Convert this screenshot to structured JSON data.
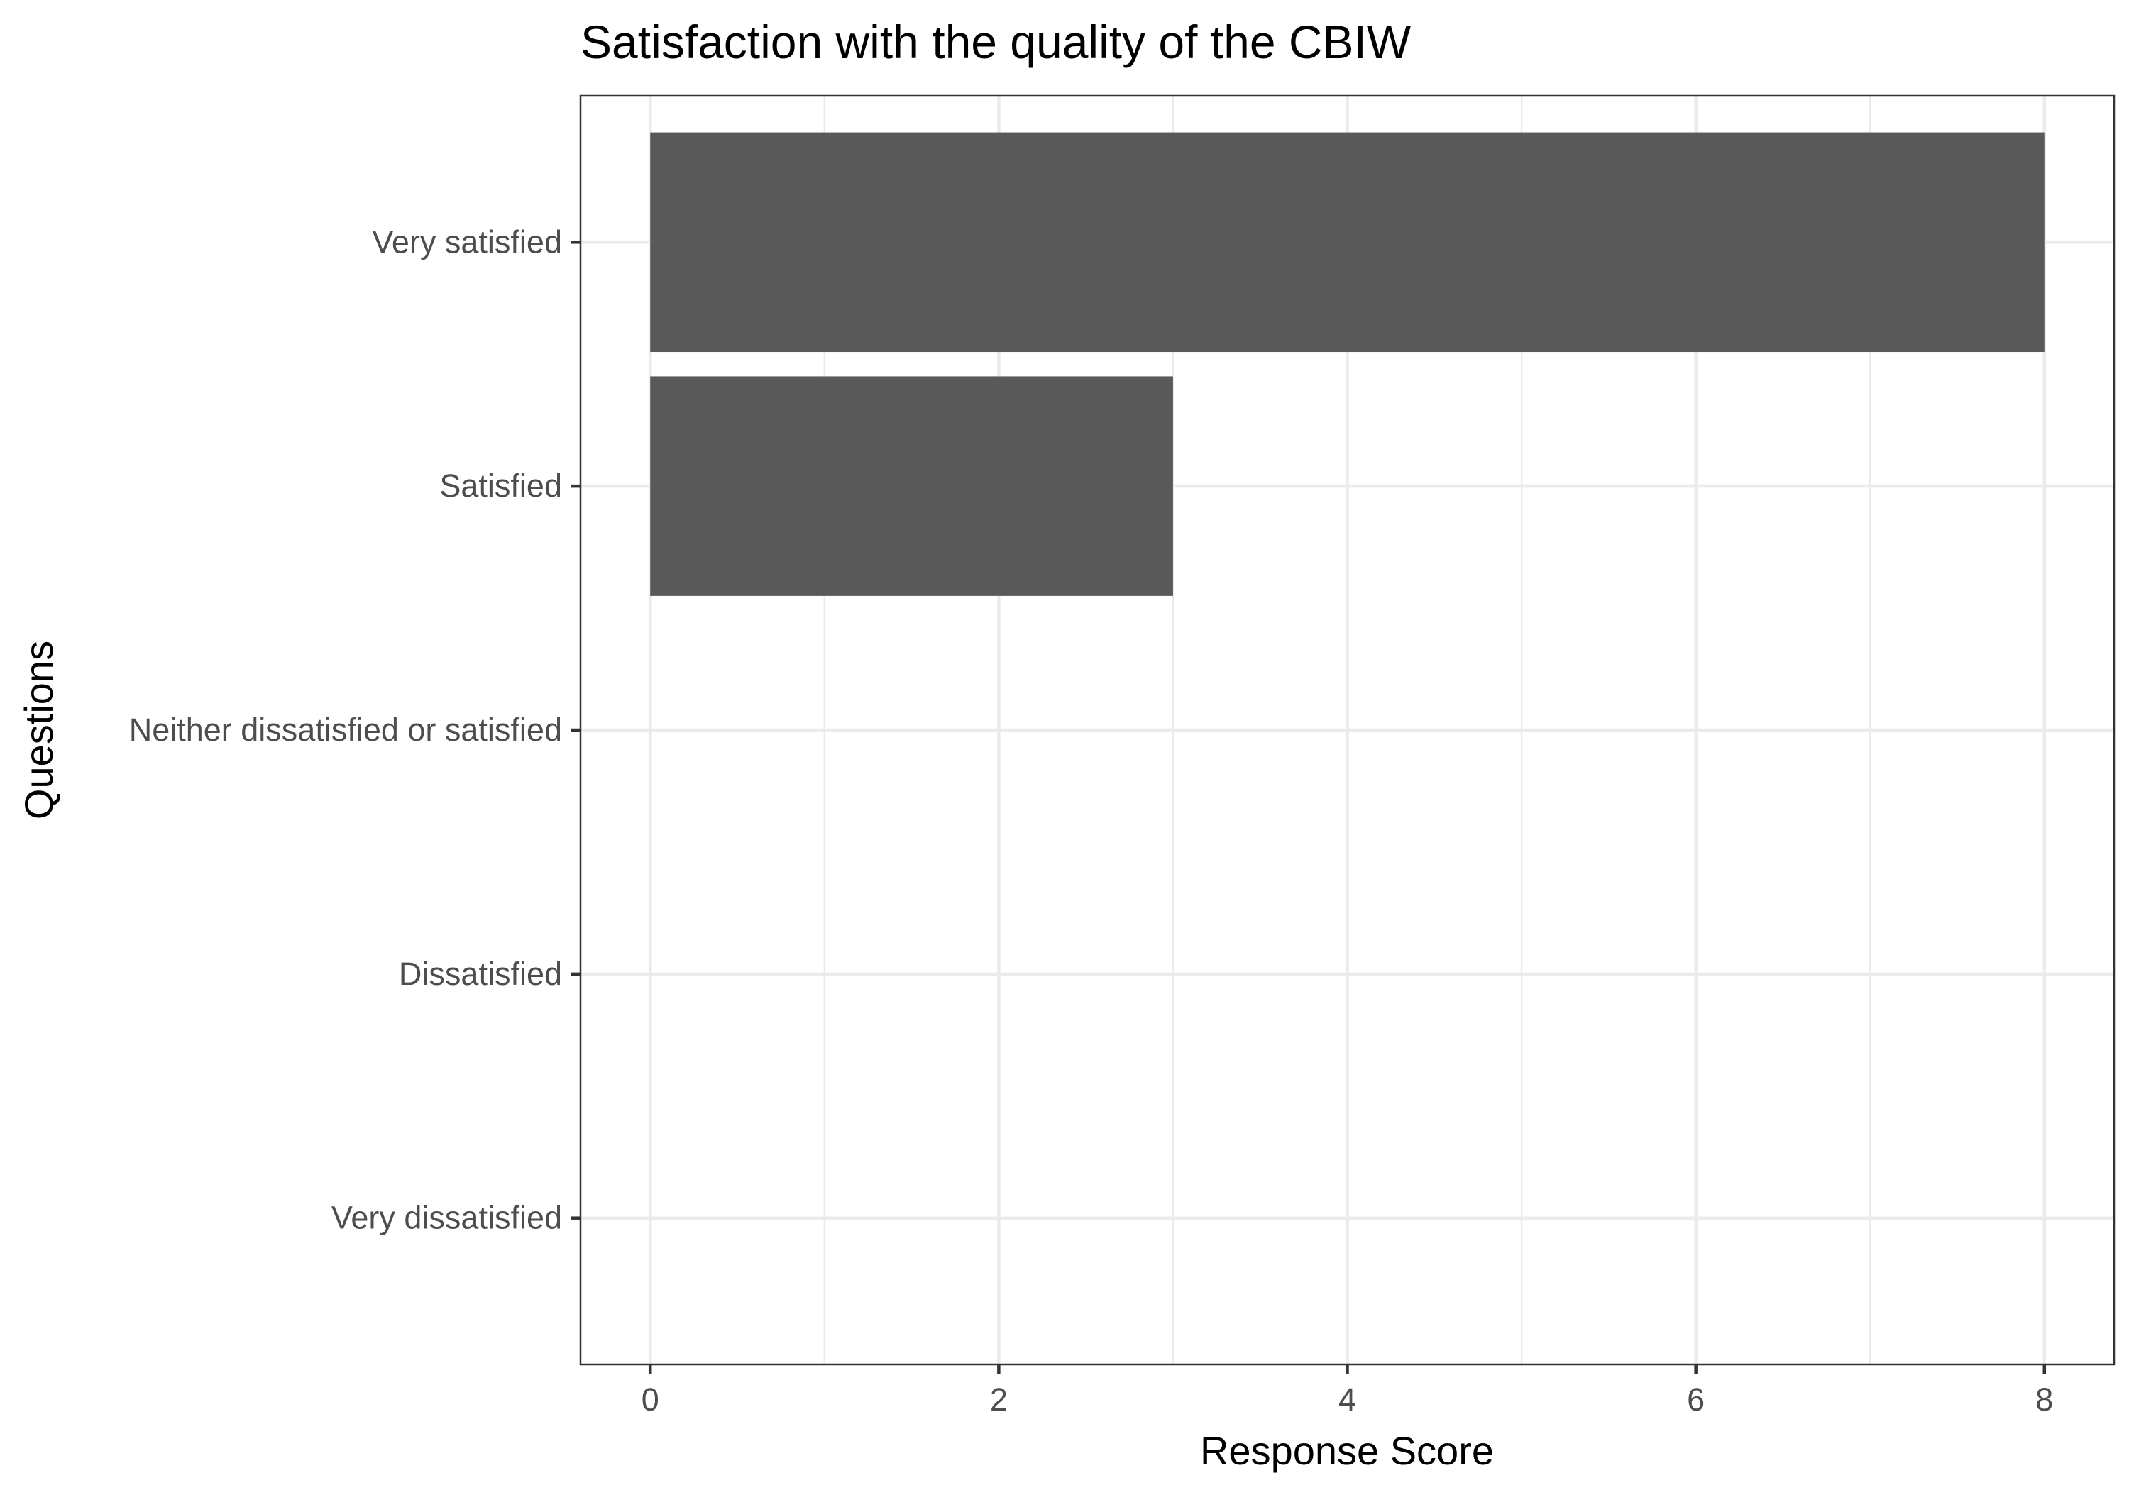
{
  "chart_data": {
    "type": "bar",
    "orientation": "horizontal",
    "title": "Satisfaction with the quality of the CBIW",
    "xlabel": "Response Score",
    "ylabel": "Questions",
    "categories": [
      "Very satisfied",
      "Satisfied",
      "Neither dissatisfied or satisfied",
      "Dissatisfied",
      "Very dissatisfied"
    ],
    "values": [
      8,
      3,
      0,
      0,
      0
    ],
    "xlim": [
      -0.4,
      8.4
    ],
    "xticks": [
      0,
      2,
      4,
      6,
      8
    ],
    "grid": true,
    "bar_color": "#595959"
  }
}
